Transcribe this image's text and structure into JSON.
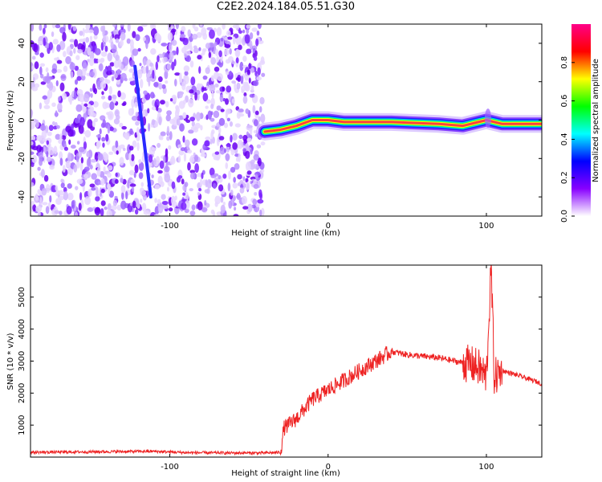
{
  "title": "C2E2.2024.184.05.51.G30",
  "chart_data": [
    {
      "type": "heatmap",
      "xlabel": "Height of straight line (km)",
      "ylabel": "Frequency (Hz)",
      "xlim": [
        -188,
        135
      ],
      "ylim": [
        -50,
        50
      ],
      "x_ticks": [
        -100,
        0,
        100
      ],
      "y_ticks": [
        -40,
        -20,
        0,
        20,
        40
      ],
      "grid": false,
      "colorbar": {
        "label": "Normalized spectral amplitude",
        "range": [
          0,
          1
        ],
        "ticks": [
          0.0,
          0.2,
          0.4,
          0.6,
          0.8
        ],
        "colors": [
          "#ffffff",
          "#8800ff",
          "#0000ff",
          "#00ffff",
          "#00ff00",
          "#ffff00",
          "#ff0000",
          "#ff0088"
        ]
      },
      "noise_region_x": [
        -188,
        -41
      ],
      "streak": {
        "x_start": -122,
        "y_start": 28,
        "x_end": -112,
        "y_end": -40
      },
      "ridge": [
        {
          "x": -40,
          "y": -6
        },
        {
          "x": -30,
          "y": -5
        },
        {
          "x": -20,
          "y": -3
        },
        {
          "x": -10,
          "y": 0
        },
        {
          "x": 0,
          "y": 0
        },
        {
          "x": 10,
          "y": -1
        },
        {
          "x": 40,
          "y": -1
        },
        {
          "x": 70,
          "y": -2
        },
        {
          "x": 85,
          "y": -3
        },
        {
          "x": 95,
          "y": -1
        },
        {
          "x": 100,
          "y": 0
        },
        {
          "x": 110,
          "y": -2
        },
        {
          "x": 135,
          "y": -2
        }
      ]
    },
    {
      "type": "line",
      "xlabel": "Height of straight line (km)",
      "ylabel": "SNR (10 * v/v)",
      "xlim": [
        -188,
        135
      ],
      "ylim": [
        0,
        6000
      ],
      "x_ticks": [
        -100,
        0,
        100
      ],
      "y_ticks": [
        1000,
        2000,
        3000,
        4000,
        5000
      ],
      "grid": false,
      "series": [
        {
          "color": "#ee2222",
          "x": [
            -188,
            -160,
            -140,
            -110,
            -90,
            -60,
            -40,
            -30,
            -28,
            -20,
            -10,
            0,
            10,
            20,
            30,
            40,
            50,
            60,
            70,
            80,
            90,
            95,
            100,
            103,
            105,
            110,
            120,
            135
          ],
          "y": [
            150,
            160,
            170,
            180,
            140,
            130,
            130,
            150,
            900,
            1200,
            1800,
            2100,
            2400,
            2700,
            3000,
            3300,
            3200,
            3150,
            3100,
            3000,
            2900,
            2800,
            2500,
            5900,
            2500,
            2700,
            2550,
            2300
          ]
        }
      ]
    }
  ]
}
